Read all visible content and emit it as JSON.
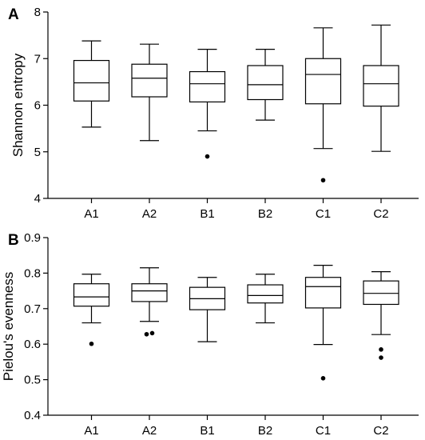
{
  "chart_data": [
    {
      "type": "box",
      "panel": "A",
      "ylabel": "Shannon entropy",
      "ylim": [
        4,
        8
      ],
      "yticks": [
        "4",
        "5",
        "6",
        "7",
        "8"
      ],
      "categories": [
        "A1",
        "A2",
        "B1",
        "B2",
        "C1",
        "C2"
      ],
      "boxes": [
        {
          "min": 5.53,
          "q1": 6.09,
          "median": 6.48,
          "q3": 6.96,
          "max": 7.38,
          "outliers": []
        },
        {
          "min": 5.24,
          "q1": 6.18,
          "median": 6.58,
          "q3": 6.88,
          "max": 7.31,
          "outliers": []
        },
        {
          "min": 5.45,
          "q1": 6.07,
          "median": 6.46,
          "q3": 6.72,
          "max": 7.2,
          "outliers": [
            4.9
          ]
        },
        {
          "min": 5.68,
          "q1": 6.12,
          "median": 6.44,
          "q3": 6.85,
          "max": 7.2,
          "outliers": []
        },
        {
          "min": 5.07,
          "q1": 6.03,
          "median": 6.66,
          "q3": 7.0,
          "max": 7.66,
          "outliers": [
            4.39
          ]
        },
        {
          "min": 5.01,
          "q1": 5.98,
          "median": 6.46,
          "q3": 6.85,
          "max": 7.72,
          "outliers": []
        }
      ]
    },
    {
      "type": "box",
      "panel": "B",
      "ylabel": "Pielou's evenness",
      "ylim": [
        0.4,
        0.9
      ],
      "yticks": [
        "0.4",
        "0.5",
        "0.6",
        "0.7",
        "0.8",
        "0.9"
      ],
      "categories": [
        "A1",
        "A2",
        "B1",
        "B2",
        "C1",
        "C2"
      ],
      "boxes": [
        {
          "min": 0.66,
          "q1": 0.707,
          "median": 0.733,
          "q3": 0.77,
          "max": 0.797,
          "outliers": [
            0.601
          ]
        },
        {
          "min": 0.664,
          "q1": 0.72,
          "median": 0.75,
          "q3": 0.77,
          "max": 0.815,
          "outliers": [
            0.628,
            0.631
          ]
        },
        {
          "min": 0.607,
          "q1": 0.697,
          "median": 0.728,
          "q3": 0.76,
          "max": 0.788,
          "outliers": []
        },
        {
          "min": 0.66,
          "q1": 0.716,
          "median": 0.737,
          "q3": 0.767,
          "max": 0.797,
          "outliers": []
        },
        {
          "min": 0.599,
          "q1": 0.702,
          "median": 0.762,
          "q3": 0.788,
          "max": 0.822,
          "outliers": [
            0.504
          ]
        },
        {
          "min": 0.627,
          "q1": 0.712,
          "median": 0.743,
          "q3": 0.778,
          "max": 0.804,
          "outliers": [
            0.562,
            0.585
          ]
        }
      ]
    }
  ]
}
